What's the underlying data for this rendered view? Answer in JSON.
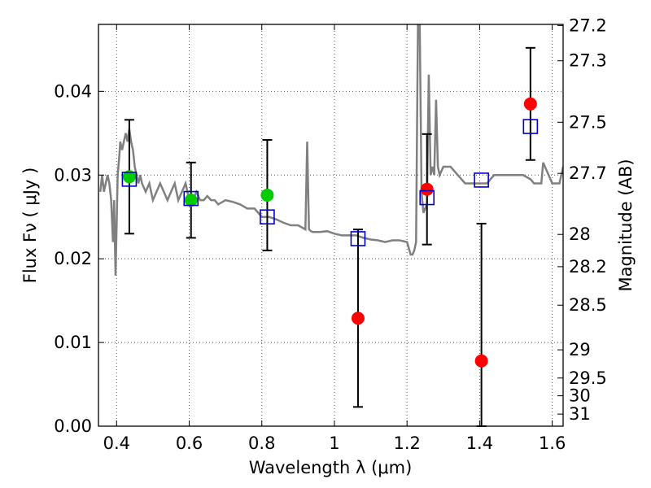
{
  "chart_data": {
    "type": "scatter",
    "title": "",
    "xlabel": "Wavelength  λ (μm)",
    "ylabel": "Flux  Fν  ( μJy )",
    "y2label": "Magnitude (AB)",
    "xlim": [
      0.35,
      1.63
    ],
    "ylim": [
      0.0,
      0.048
    ],
    "grid": true,
    "x_ticks": [
      0.4,
      0.6,
      0.8,
      1.0,
      1.2,
      1.4,
      1.6
    ],
    "x_tick_labels": [
      "0.4",
      "0.6",
      "0.8",
      "1",
      "1.2",
      "1.4",
      "1.6"
    ],
    "y_ticks": [
      0.0,
      0.01,
      0.02,
      0.03,
      0.04
    ],
    "y_tick_labels": [
      "0.00",
      "0.01",
      "0.02",
      "0.03",
      "0.04"
    ],
    "mag_ticks": [
      "27.2",
      "27.3",
      "27.5",
      "27.7",
      "28",
      "28.2",
      "28.5",
      "29",
      "29.5",
      "30",
      "31"
    ],
    "colors": {
      "model": "#808080",
      "red": "#ff0000",
      "green": "#00cc00",
      "squares": "#0000cc",
      "errorbar": "#000000",
      "grid": "#555555"
    },
    "model_spectrum": {
      "x": [
        0.355,
        0.36,
        0.365,
        0.37,
        0.375,
        0.38,
        0.385,
        0.39,
        0.393,
        0.397,
        0.4,
        0.403,
        0.407,
        0.41,
        0.415,
        0.42,
        0.425,
        0.43,
        0.435,
        0.44,
        0.445,
        0.45,
        0.455,
        0.46,
        0.465,
        0.47,
        0.48,
        0.49,
        0.5,
        0.51,
        0.52,
        0.53,
        0.54,
        0.55,
        0.56,
        0.57,
        0.58,
        0.59,
        0.6,
        0.61,
        0.62,
        0.63,
        0.64,
        0.65,
        0.66,
        0.67,
        0.68,
        0.7,
        0.72,
        0.74,
        0.76,
        0.78,
        0.8,
        0.82,
        0.84,
        0.86,
        0.88,
        0.9,
        0.92,
        0.925,
        0.93,
        0.935,
        0.94,
        0.96,
        0.98,
        1.0,
        1.02,
        1.04,
        1.06,
        1.08,
        1.1,
        1.12,
        1.14,
        1.16,
        1.18,
        1.2,
        1.21,
        1.215,
        1.22,
        1.225,
        1.23,
        1.235,
        1.24,
        1.245,
        1.25,
        1.255,
        1.26,
        1.265,
        1.27,
        1.275,
        1.28,
        1.285,
        1.29,
        1.3,
        1.32,
        1.34,
        1.36,
        1.38,
        1.4,
        1.42,
        1.44,
        1.46,
        1.48,
        1.5,
        1.52,
        1.54,
        1.55,
        1.56,
        1.57,
        1.575,
        1.58,
        1.59,
        1.6,
        1.61,
        1.62,
        1.63
      ],
      "y": [
        0.028,
        0.03,
        0.028,
        0.029,
        0.03,
        0.029,
        0.027,
        0.022,
        0.027,
        0.018,
        0.024,
        0.03,
        0.032,
        0.034,
        0.033,
        0.034,
        0.035,
        0.034,
        0.0355,
        0.034,
        0.033,
        0.031,
        0.03,
        0.029,
        0.03,
        0.029,
        0.028,
        0.029,
        0.027,
        0.028,
        0.029,
        0.028,
        0.027,
        0.028,
        0.029,
        0.027,
        0.028,
        0.029,
        0.027,
        0.027,
        0.028,
        0.027,
        0.027,
        0.0275,
        0.027,
        0.027,
        0.0265,
        0.027,
        0.0268,
        0.0265,
        0.026,
        0.026,
        0.025,
        0.025,
        0.0247,
        0.0243,
        0.024,
        0.024,
        0.0235,
        0.034,
        0.0235,
        0.0233,
        0.0232,
        0.0232,
        0.0233,
        0.023,
        0.0228,
        0.0228,
        0.0228,
        0.0225,
        0.0223,
        0.0222,
        0.022,
        0.0222,
        0.0222,
        0.022,
        0.0205,
        0.0205,
        0.021,
        0.022,
        0.048,
        0.048,
        0.028,
        0.0255,
        0.026,
        0.0265,
        0.042,
        0.03,
        0.031,
        0.03,
        0.039,
        0.031,
        0.03,
        0.031,
        0.031,
        0.03,
        0.029,
        0.029,
        0.029,
        0.029,
        0.03,
        0.03,
        0.03,
        0.03,
        0.03,
        0.0295,
        0.029,
        0.029,
        0.029,
        0.0315,
        0.031,
        0.03,
        0.029,
        0.029,
        0.029,
        0.031
      ],
      "color": "#808080"
    },
    "green_points": {
      "x": [
        0.435,
        0.605,
        0.815
      ],
      "y": [
        0.0298,
        0.027,
        0.0276
      ],
      "y_err": [
        0.0068,
        0.0045,
        0.0066
      ]
    },
    "red_points": {
      "x": [
        1.065,
        1.255,
        1.405,
        1.54
      ],
      "y": [
        0.0129,
        0.0283,
        0.0078,
        0.0385
      ],
      "y_err": [
        0.0106,
        0.0066,
        0.0164,
        0.0067
      ]
    },
    "squares": {
      "x": [
        0.435,
        0.605,
        0.815,
        1.065,
        1.255,
        1.405,
        1.54
      ],
      "y": [
        0.0295,
        0.0272,
        0.025,
        0.0224,
        0.0273,
        0.0294,
        0.0358
      ]
    }
  }
}
